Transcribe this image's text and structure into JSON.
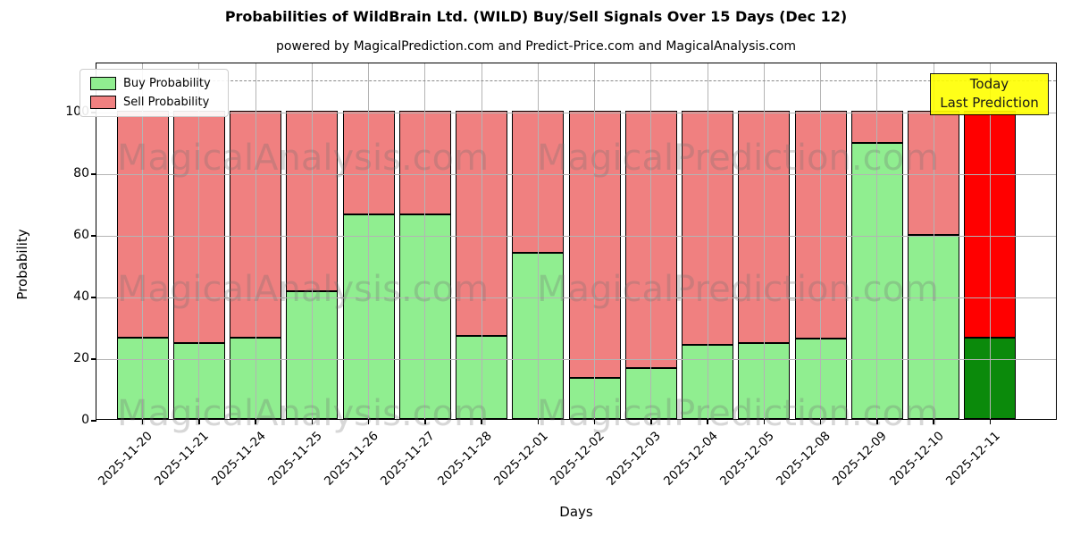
{
  "chart_data": {
    "type": "bar",
    "stacked": true,
    "title": "Probabilities of WildBrain Ltd. (WILD) Buy/Sell Signals Over 15 Days (Dec 12)",
    "subtitle": "powered by MagicalPrediction.com and Predict-Price.com and MagicalAnalysis.com",
    "xlabel": "Days",
    "ylabel": "Probability",
    "categories": [
      "2025-11-20",
      "2025-11-21",
      "2025-11-24",
      "2025-11-25",
      "2025-11-26",
      "2025-11-27",
      "2025-11-28",
      "2025-12-01",
      "2025-12-02",
      "2025-12-03",
      "2025-12-04",
      "2025-12-05",
      "2025-12-08",
      "2025-12-09",
      "2025-12-10",
      "2025-12-11"
    ],
    "series": [
      {
        "name": "Buy Probability",
        "color": "#90EE90",
        "values": [
          26.3,
          24.7,
          26.4,
          41.5,
          66.3,
          66.3,
          27.0,
          53.9,
          13.4,
          16.4,
          24.0,
          24.6,
          26.1,
          89.5,
          59.6,
          26.3
        ]
      },
      {
        "name": "Sell Probability",
        "color": "#F08080",
        "values": [
          73.7,
          75.3,
          73.6,
          58.5,
          33.7,
          33.7,
          73.0,
          46.1,
          86.6,
          83.6,
          76.0,
          75.4,
          73.9,
          10.5,
          40.4,
          73.7
        ]
      }
    ],
    "today_index": 15,
    "today_colors": {
      "buy": "#0b8a0b",
      "sell": "#FF0000"
    },
    "ylim": [
      0,
      116
    ],
    "yticks": [
      0,
      20,
      40,
      60,
      80,
      100
    ],
    "grid": true,
    "grid_above_bars": true,
    "legend_position": "upper-left",
    "dashed_line_y": 110.5,
    "annotation": {
      "lines": [
        "Today",
        "Last Prediction"
      ],
      "bg_color": "#ffff00"
    },
    "watermarks": [
      "MagicalAnalysis.com",
      "MagicalPrediction.com"
    ]
  }
}
